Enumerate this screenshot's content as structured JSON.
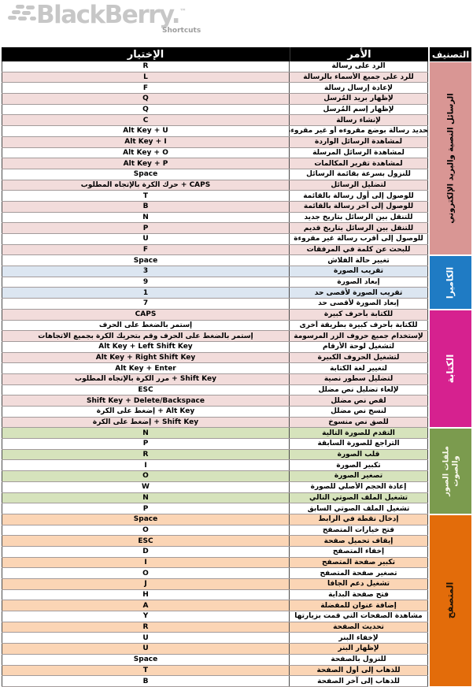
{
  "brand": {
    "logo_text": "BlackBerry.",
    "tm": "™",
    "subtitle": "Shortcuts"
  },
  "table": {
    "headers": {
      "choice": "الإختيار",
      "command": "الأمر",
      "category": "التصنيف"
    }
  },
  "colors": {
    "header_bar": "#000000",
    "messages_sidebar": "#d99694",
    "messages_stripe": "#f2dcdb",
    "camera_sidebar": "#1f7bc4",
    "camera_stripe": "#dce6f1",
    "typing_sidebar": "#d6218f",
    "typing_stripe": "#f2dcdb",
    "media_sidebar": "#7b9b4e",
    "media_stripe": "#d6e3bc",
    "browser_sidebar": "#e36c0a",
    "browser_stripe": "#fbd5b5"
  },
  "sections": [
    {
      "id": "messages",
      "label": "الرسائل النصية والبريد الإلكتروني",
      "color": "#d99694",
      "stripe": "#f2dcdb",
      "label_color": "#000000",
      "first_tinted": false,
      "rows": [
        {
          "key": "R",
          "command": "الرد على رسالة"
        },
        {
          "key": "L",
          "command": "للرد على جميع الأسماء بالرسالة"
        },
        {
          "key": "F",
          "command": "لإعادة إرسال رسالة"
        },
        {
          "key": "Q",
          "command": "لإظهار بريد المُرسل"
        },
        {
          "key": "Q",
          "command": "لإظهار إسم المُرسل"
        },
        {
          "key": "C",
          "command": "لإنشاء رسالة"
        },
        {
          "key": "Alt Key + U",
          "command": "تحديد رسالة بوضع مقروءه أو غير مقروءه"
        },
        {
          "key": "Alt Key + I",
          "command": "لمشاهدة الرسائل الواردة"
        },
        {
          "key": "Alt Key + O",
          "command": "لمشاهدة الرسائل المرسلة"
        },
        {
          "key": "Alt Key + P",
          "command": "لمشاهدة تقرير المكالمات"
        },
        {
          "key": "Space",
          "command": "للنزول بسرعة بقائمة الرسائل"
        },
        {
          "key": "حرك الكرة بالإتجاه المطلوب + CAPS",
          "command": "لتضليل الرسائل"
        },
        {
          "key": "T",
          "command": "للوصول إلى أول رسالة بالقائمة"
        },
        {
          "key": "B",
          "command": "للوصول إلى آخر رسالة بالقائمة"
        },
        {
          "key": "N",
          "command": "للتنقل بين الرسائل بتاريخ جديد"
        },
        {
          "key": "P",
          "command": "للتنقل بين الرسائل بتاريخ قديم"
        },
        {
          "key": "U",
          "command": "للوصول إلى أقرب رسالة غير مقروءة"
        },
        {
          "key": "F",
          "command": "للبحث عن كلمة في المرفقات"
        }
      ]
    },
    {
      "id": "camera",
      "label": "الكاميرا",
      "color": "#1f7bc4",
      "stripe": "#dce6f1",
      "label_color": "#ffffff",
      "first_tinted": false,
      "rows": [
        {
          "key": "Space",
          "command": "تغيير حالة الفلاش"
        },
        {
          "key": "3",
          "command": "تقريب الصورة"
        },
        {
          "key": "9",
          "command": "إبعاد الصورة"
        },
        {
          "key": "1",
          "command": "تقريب الصورة لأقصى حد"
        },
        {
          "key": "7",
          "command": "إبعاد الصورة لأقصى حد"
        }
      ]
    },
    {
      "id": "typing",
      "label": "الكتابة",
      "color": "#d6218f",
      "stripe": "#f2dcdb",
      "label_color": "#ffffff",
      "first_tinted": true,
      "rows": [
        {
          "key": "CAPS",
          "command": "للكتابة بأحرف كبيرة"
        },
        {
          "key": "إستمر بالضغط على الحرف",
          "command": "للكتابة بأحرف كبيرة بطريقة أخرى"
        },
        {
          "key": "إستمر بالضغط على الحرف وقم بتحريك الكرة بجميع الاتجاهات",
          "command": "لإستخدام جميع حروف الزر المرسومة"
        },
        {
          "key": "Alt Key + Left Shift Key",
          "command": "لتشغيل لوحة الأرقام"
        },
        {
          "key": "Alt Key + Right Shift Key",
          "command": "لتشغيل الحروف الكبيرة"
        },
        {
          "key": "Alt Key + Enter",
          "command": "لتغيير لغة الكتابة"
        },
        {
          "key": "مرر الكرة بالإتجاه المطلوب + Shift Key",
          "command": "لتضليل سطور نصية"
        },
        {
          "key": "ESC",
          "command": "لإلغاء تضليل نص مضلل"
        },
        {
          "key": "Shift Key + Delete/Backspace",
          "command": "لقص نص مضلل"
        },
        {
          "key": "إضغط على الكرة + Alt Key",
          "command": "لنسخ نص مضلل"
        },
        {
          "key": "إضغط على الكرة + Shift Key",
          "command": "للصق نص منسوخ"
        }
      ]
    },
    {
      "id": "media",
      "label": "ملفات الصور والصوت",
      "color": "#7b9b4e",
      "stripe": "#d6e3bc",
      "label_color": "#fbfaee",
      "first_tinted": true,
      "rows": [
        {
          "key": "N",
          "command": "التقدم للصورة التالية"
        },
        {
          "key": "P",
          "command": "التراجع للصورة السابقة"
        },
        {
          "key": "R",
          "command": "قلب الصورة"
        },
        {
          "key": "I",
          "command": "تكبير الصورة"
        },
        {
          "key": "O",
          "command": "تصغير الصورة"
        },
        {
          "key": "W",
          "command": "إعادة الحجم الأصلي للصورة"
        },
        {
          "key": "N",
          "command": "تشغيل الملف الصوتي التالي"
        },
        {
          "key": "P",
          "command": "تشغيل الملف الصوتي السابق"
        }
      ]
    },
    {
      "id": "browser",
      "label": "المتصفح",
      "color": "#e36c0a",
      "stripe": "#fbd5b5",
      "label_color": "#1a1208",
      "first_tinted": true,
      "rows": [
        {
          "key": "Space",
          "command": "إدخال نقطة في الرابط"
        },
        {
          "key": "O",
          "command": "فتح خيارات المتصفح"
        },
        {
          "key": "ESC",
          "command": "إيقاف تحميل صفحة"
        },
        {
          "key": "D",
          "command": "إخفاء المتصفح"
        },
        {
          "key": "I",
          "command": "تكبير صفحة المتصفح"
        },
        {
          "key": "O",
          "command": "تصغير صفحة المتصفح"
        },
        {
          "key": "J",
          "command": "تشغيل دعم الجافا"
        },
        {
          "key": "H",
          "command": "فتح صفحة البداية"
        },
        {
          "key": "A",
          "command": "إضافة عنوان للمفضلة"
        },
        {
          "key": "Y",
          "command": "مشاهدة الصفحات التي قمت بزيارتها"
        },
        {
          "key": "R",
          "command": "تحديث الصفحة"
        },
        {
          "key": "U",
          "command": "لإخفاء البنر"
        },
        {
          "key": "U",
          "command": "لإظهار البنر"
        },
        {
          "key": "Space",
          "command": "للنزول بالصفحة"
        },
        {
          "key": "T",
          "command": "للذهاب إلى أول الصفحة"
        },
        {
          "key": "B",
          "command": "للذهاب إلى آخر الصفحة"
        }
      ]
    }
  ]
}
